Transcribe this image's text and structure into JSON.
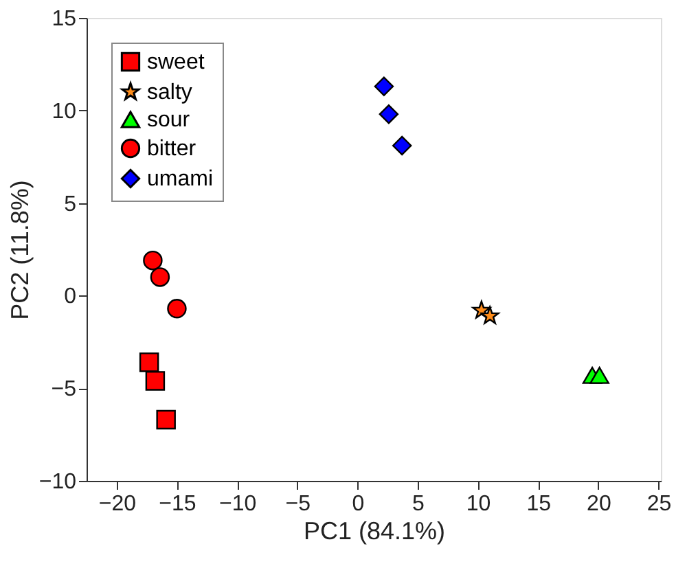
{
  "chart_data": {
    "type": "scatter",
    "xlabel": "PC1 (84.1%)",
    "ylabel": "PC2 (11.8%)",
    "xlim": [
      -22.5,
      25.2
    ],
    "ylim": [
      -10,
      15
    ],
    "xticks": [
      -20,
      -15,
      -10,
      -5,
      0,
      5,
      10,
      15,
      20,
      25
    ],
    "yticks": [
      -10,
      -5,
      0,
      5,
      10,
      15
    ],
    "grid": false,
    "legend": "top left",
    "series": [
      {
        "name": "sweet",
        "color": "#ff0000",
        "marker": "square",
        "x": [
          -17.3,
          -16.8,
          -15.9
        ],
        "values": [
          -3.6,
          -4.6,
          -6.7
        ]
      },
      {
        "name": "salty",
        "color": "#ff8c1a",
        "marker": "star",
        "x": [
          10.3,
          11.0
        ],
        "values": [
          -0.8,
          -1.1
        ]
      },
      {
        "name": "sour",
        "color": "#00ff00",
        "marker": "triangle",
        "x": [
          19.5,
          20.1
        ],
        "values": [
          -4.3,
          -4.3
        ]
      },
      {
        "name": "bitter",
        "color": "#ff0000",
        "marker": "circle",
        "x": [
          -17.0,
          -16.4,
          -15.0
        ],
        "values": [
          1.9,
          1.0,
          -0.7
        ]
      },
      {
        "name": "umami",
        "color": "#0000ff",
        "marker": "diamond",
        "x": [
          2.2,
          2.6,
          3.7
        ],
        "values": [
          11.3,
          9.8,
          8.1
        ]
      }
    ]
  }
}
